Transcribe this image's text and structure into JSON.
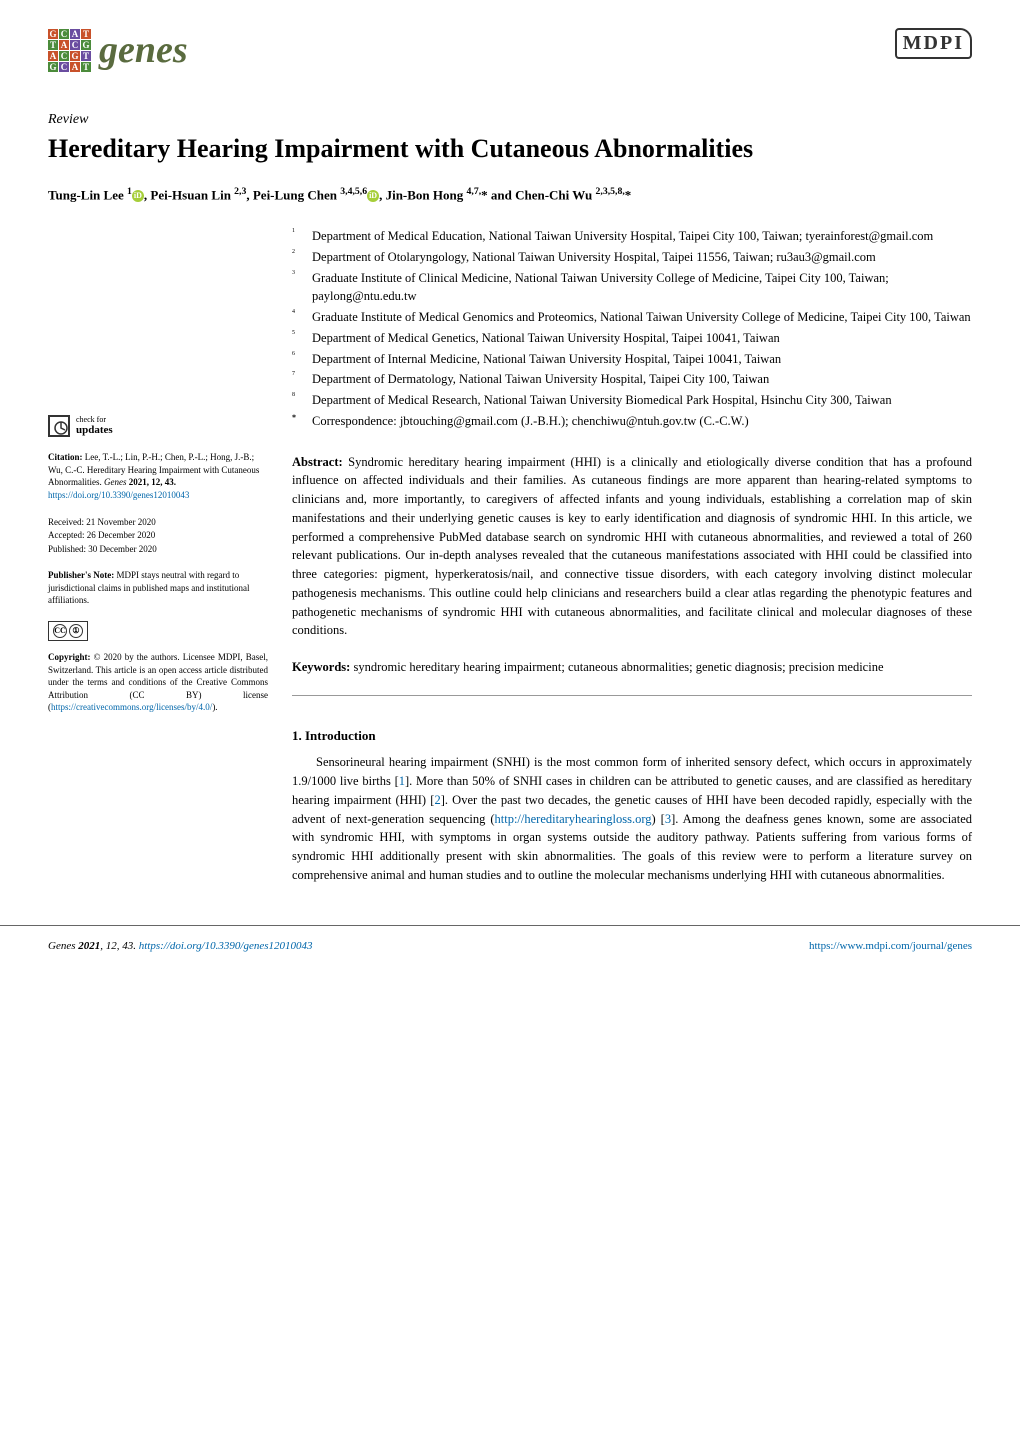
{
  "journal": {
    "name": "genes",
    "logo_bg_colors": [
      "#c8512a",
      "#4b8b3b",
      "#6a4da0",
      "#c8512a",
      "#4b8b3b",
      "#c8512a",
      "#6a4da0",
      "#4b8b3b",
      "#c8512a",
      "#4b8b3b",
      "#c8512a",
      "#6a4da0",
      "#4b8b3b",
      "#6a4da0",
      "#c8512a",
      "#4b8b3b"
    ],
    "logo_letters": [
      "G",
      "C",
      "A",
      "T",
      "T",
      "A",
      "C",
      "G",
      "A",
      "C",
      "G",
      "T",
      "G",
      "C",
      "A",
      "T"
    ]
  },
  "publisher": "MDPI",
  "article_type": "Review",
  "title": "Hereditary Hearing Impairment with Cutaneous Abnormalities",
  "authors_html": "Tung-Lin Lee <sup>1</sup><span class=\"orcid\"></span>, Pei-Hsuan Lin <sup>2,3</sup>, Pei-Lung Chen <sup>3,4,5,6</sup><span class=\"orcid\"></span>, Jin-Bon Hong <sup>4,7,</sup>* and Chen-Chi Wu <sup>2,3,5,8,</sup>*",
  "affiliations": [
    {
      "n": "1",
      "text": "Department of Medical Education, National Taiwan University Hospital, Taipei City 100, Taiwan; tyerainforest@gmail.com"
    },
    {
      "n": "2",
      "text": "Department of Otolaryngology, National Taiwan University Hospital, Taipei 11556, Taiwan; ru3au3@gmail.com"
    },
    {
      "n": "3",
      "text": "Graduate Institute of Clinical Medicine, National Taiwan University College of Medicine, Taipei City 100, Taiwan; paylong@ntu.edu.tw"
    },
    {
      "n": "4",
      "text": "Graduate Institute of Medical Genomics and Proteomics, National Taiwan University College of Medicine, Taipei City 100, Taiwan"
    },
    {
      "n": "5",
      "text": "Department of Medical Genetics, National Taiwan University Hospital, Taipei 10041, Taiwan"
    },
    {
      "n": "6",
      "text": "Department of Internal Medicine, National Taiwan University Hospital, Taipei 10041, Taiwan"
    },
    {
      "n": "7",
      "text": "Department of Dermatology, National Taiwan University Hospital, Taipei City 100, Taiwan"
    },
    {
      "n": "8",
      "text": "Department of Medical Research, National Taiwan University Biomedical Park Hospital, Hsinchu City 300, Taiwan"
    }
  ],
  "correspondence": {
    "symbol": "*",
    "text": "Correspondence: jbtouching@gmail.com (J.-B.H.); chenchiwu@ntuh.gov.tw (C.-C.W.)"
  },
  "abstract": {
    "label": "Abstract:",
    "text": "Syndromic hereditary hearing impairment (HHI) is a clinically and etiologically diverse condition that has a profound influence on affected individuals and their families. As cutaneous findings are more apparent than hearing-related symptoms to clinicians and, more importantly, to caregivers of affected infants and young individuals, establishing a correlation map of skin manifestations and their underlying genetic causes is key to early identification and diagnosis of syndromic HHI. In this article, we performed a comprehensive PubMed database search on syndromic HHI with cutaneous abnormalities, and reviewed a total of 260 relevant publications. Our in-depth analyses revealed that the cutaneous manifestations associated with HHI could be classified into three categories: pigment, hyperkeratosis/nail, and connective tissue disorders, with each category involving distinct molecular pathogenesis mechanisms. This outline could help clinicians and researchers build a clear atlas regarding the phenotypic features and pathogenetic mechanisms of syndromic HHI with cutaneous abnormalities, and facilitate clinical and molecular diagnoses of these conditions."
  },
  "keywords": {
    "label": "Keywords:",
    "text": "syndromic hereditary hearing impairment; cutaneous abnormalities; genetic diagnosis; precision medicine"
  },
  "section1": {
    "heading": "1. Introduction",
    "body_html": "Sensorineural hearing impairment (SNHI) is the most common form of inherited sensory defect, which occurs in approximately 1.9/1000 live births [<span class=\"ref\">1</span>]. More than 50% of SNHI cases in children can be attributed to genetic causes, and are classified as hereditary hearing impairment (HHI) [<span class=\"ref\">2</span>]. Over the past two decades, the genetic causes of HHI have been decoded rapidly, especially with the advent of next-generation sequencing (<span class=\"link\">http://hereditaryhearingloss.org</span>) [<span class=\"ref\">3</span>]. Among the deafness genes known, some are associated with syndromic HHI, with symptoms in organ systems outside the auditory pathway. Patients suffering from various forms of syndromic HHI additionally present with skin abnormalities. The goals of this review were to perform a literature survey on comprehensive animal and human studies and to outline the molecular mechanisms underlying HHI with cutaneous abnormalities."
  },
  "sidebar": {
    "check": {
      "top": "check for",
      "bottom": "updates"
    },
    "citation": {
      "label": "Citation:",
      "text": " Lee, T.-L.; Lin, P.-H.; Chen, P.-L.; Hong, J.-B.; Wu, C.-C. Hereditary Hearing Impairment with Cutaneous Abnormalities. ",
      "journal": "Genes",
      "year_vol": " 2021, 12, 43. ",
      "doi": "https://doi.org/10.3390/genes12010043"
    },
    "dates": {
      "received": "Received: 21 November 2020",
      "accepted": "Accepted: 26 December 2020",
      "published": "Published: 30 December 2020"
    },
    "pubnote": {
      "label": "Publisher's Note:",
      "text": " MDPI stays neutral with regard to jurisdictional claims in published maps and institutional affiliations."
    },
    "copyright": {
      "label": "Copyright:",
      "text": " © 2020 by the authors. Licensee MDPI, Basel, Switzerland. This article is an open access article distributed under the terms and conditions of the Creative Commons Attribution (CC BY) license (",
      "link": "https://creativecommons.org/licenses/by/4.0/",
      "tail": ")."
    }
  },
  "footer": {
    "left_html": "<span style=\"font-style:italic\">Genes</span> <b>2021</b>, <span style=\"font-style:italic\">12</span>, 43. <span class=\"link\">https://doi.org/10.3390/genes12010043</span>",
    "right": "https://www.mdpi.com/journal/genes"
  }
}
